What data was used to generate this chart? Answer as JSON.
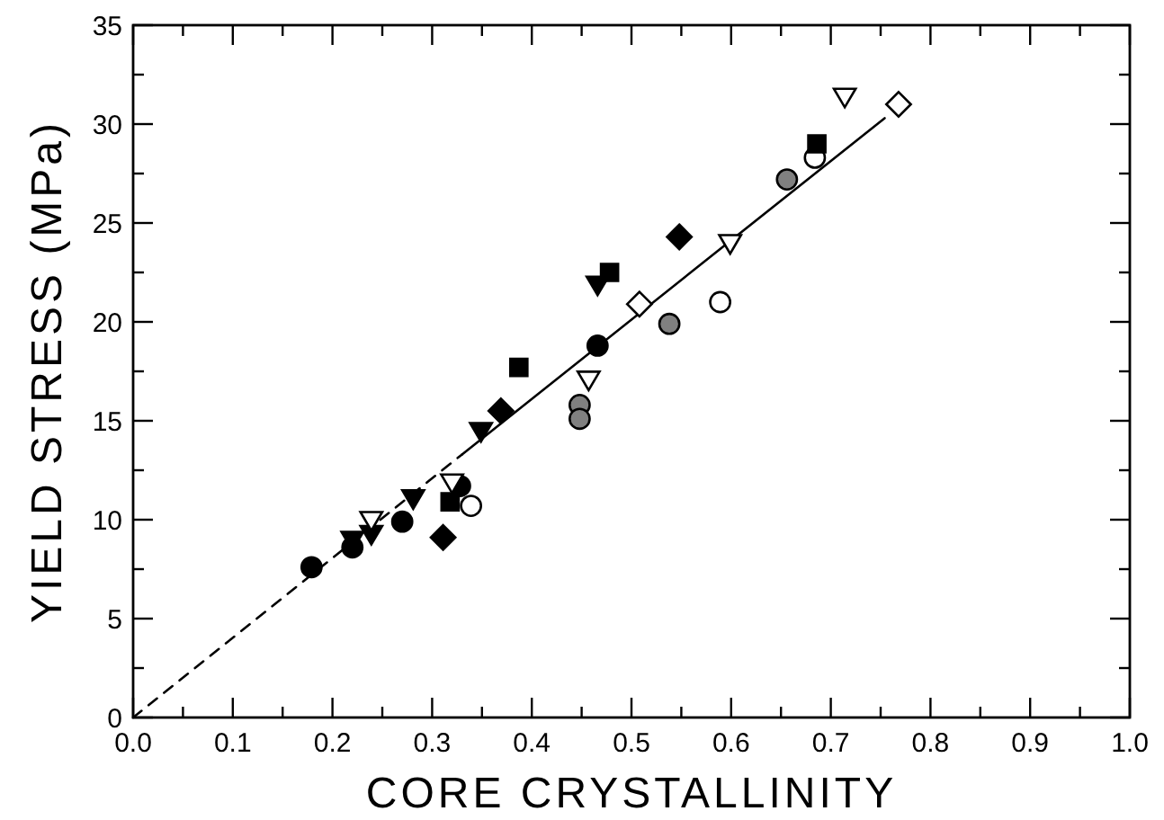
{
  "chart_data": {
    "type": "scatter",
    "xlabel": "CORE CRYSTALLINITY",
    "ylabel": "YIELD STRESS (MPa)",
    "xlim": [
      0,
      1
    ],
    "ylim": [
      0,
      35
    ],
    "xticks": [
      {
        "value": 0,
        "label": "0.0"
      },
      {
        "value": 0.05,
        "label": null
      },
      {
        "value": 0.1,
        "label": "0.1"
      },
      {
        "value": 0.15,
        "label": null
      },
      {
        "value": 0.2,
        "label": "0.2"
      },
      {
        "value": 0.25,
        "label": null
      },
      {
        "value": 0.3,
        "label": "0.3"
      },
      {
        "value": 0.35,
        "label": null
      },
      {
        "value": 0.4,
        "label": "0.4"
      },
      {
        "value": 0.45,
        "label": null
      },
      {
        "value": 0.5,
        "label": "0.5"
      },
      {
        "value": 0.55,
        "label": null
      },
      {
        "value": 0.6,
        "label": "0.6"
      },
      {
        "value": 0.65,
        "label": null
      },
      {
        "value": 0.7,
        "label": "0.7"
      },
      {
        "value": 0.75,
        "label": null
      },
      {
        "value": 0.8,
        "label": "0.8"
      },
      {
        "value": 0.85,
        "label": null
      },
      {
        "value": 0.9,
        "label": "0.9"
      },
      {
        "value": 0.95,
        "label": null
      },
      {
        "value": 1,
        "label": "1.0"
      }
    ],
    "yticks": [
      0,
      {
        "value": 2.5,
        "label": null
      },
      5,
      {
        "value": 7.5,
        "label": null
      },
      10,
      {
        "value": 12.5,
        "label": null
      },
      15,
      {
        "value": 17.5,
        "label": null
      },
      20,
      {
        "value": 22.5,
        "label": null
      },
      25,
      {
        "value": 27.5,
        "label": null
      },
      30,
      {
        "value": 32.5,
        "label": null
      },
      35
    ],
    "grid": false,
    "series": [
      {
        "marker": "circle",
        "color": "#000000",
        "x": [
          0.179,
          0.22,
          0.27,
          0.328,
          0.466
        ],
        "values": [
          7.6,
          8.6,
          9.9,
          11.7,
          18.8
        ]
      },
      {
        "type": "scatter",
        "marker": "circle",
        "color": "#ffffff",
        "x": [
          0.339,
          0.589,
          0.684
        ],
        "values": [
          10.7,
          21.0,
          28.3
        ]
      },
      {
        "type": "scatter",
        "marker": "circle",
        "color": "#808080",
        "x": [
          0.448,
          0.448,
          0.538,
          0.656
        ],
        "values": [
          15.8,
          15.1,
          19.9,
          27.2
        ]
      },
      {
        "type": "scatter",
        "marker": "square",
        "color": "#000000",
        "x": [
          0.318,
          0.387,
          0.478,
          0.686
        ],
        "values": [
          10.9,
          17.7,
          22.5,
          29.0
        ]
      },
      {
        "type": "scatter",
        "marker": "triangle",
        "color": "#000000",
        "x": [
          0.22,
          0.239,
          0.281,
          0.349,
          0.466
        ],
        "values": [
          9.0,
          9.3,
          11.1,
          14.5,
          21.9
        ]
      },
      {
        "type": "scatter",
        "marker": "triangle",
        "color": "#ffffff",
        "x": [
          0.239,
          0.32,
          0.457,
          0.599,
          0.714
        ],
        "values": [
          10.0,
          11.9,
          17.1,
          24.0,
          31.4
        ]
      },
      {
        "type": "scatter",
        "marker": "diamond",
        "color": "#000000",
        "x": [
          0.311,
          0.369,
          0.548
        ],
        "values": [
          9.1,
          15.5,
          24.3
        ]
      },
      {
        "type": "scatter",
        "marker": "diamond",
        "color": "#ffffff",
        "x": [
          0.508,
          0.768
        ],
        "values": [
          20.9,
          31.0
        ]
      },
      {
        "type": "line",
        "marker": "none",
        "line_style": "dashed",
        "color": "#000000",
        "x": [
          0,
          0.33
        ],
        "values": [
          0,
          13.3
        ]
      },
      {
        "type": "line",
        "marker": "none",
        "line_style": "solid",
        "color": "#000000",
        "x": [
          0.33,
          0.754
        ],
        "values": [
          13.3,
          30.3
        ]
      }
    ]
  }
}
